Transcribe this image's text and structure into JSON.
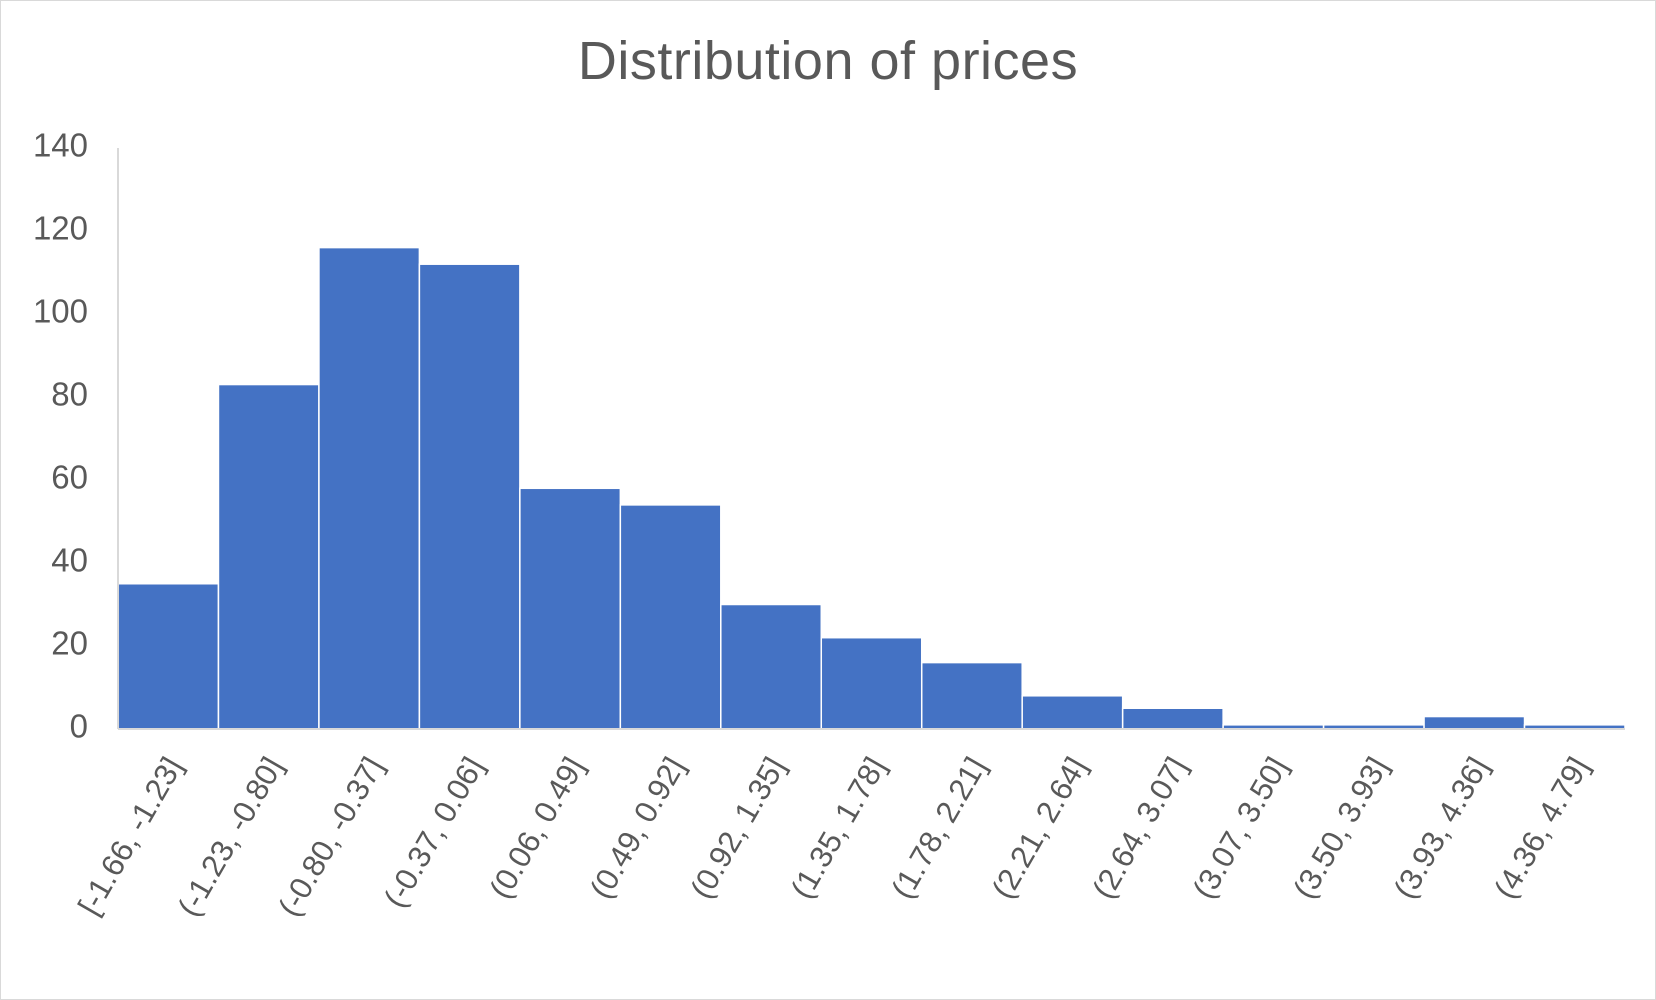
{
  "chart_data": {
    "type": "bar",
    "title": "Distribution of prices",
    "xlabel": "",
    "ylabel": "",
    "categories": [
      "[-1.66, -1.23]",
      "(-1.23, -0.80]",
      "(-0.80, -0.37]",
      "(-0.37, 0.06]",
      "(0.06, 0.49]",
      "(0.49, 0.92]",
      "(0.92, 1.35]",
      "(1.35, 1.78]",
      "(1.78, 2.21]",
      "(2.21, 2.64]",
      "(2.64, 3.07]",
      "(3.07, 3.50]",
      "(3.50, 3.93]",
      "(3.93, 4.36]",
      "(4.36, 4.79]"
    ],
    "values": [
      35,
      83,
      116,
      112,
      58,
      54,
      30,
      22,
      16,
      8,
      5,
      1,
      1,
      3,
      1
    ],
    "ylim": [
      0,
      140
    ],
    "yticks": [
      0,
      20,
      40,
      60,
      80,
      100,
      120,
      140
    ],
    "grid": false,
    "legend": "none",
    "bar_color": "#4472C4",
    "axis_color": "#d9d9d9",
    "text_color": "#595959"
  }
}
